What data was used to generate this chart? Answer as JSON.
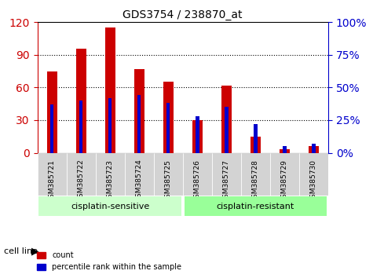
{
  "title": "GDS3754 / 238870_at",
  "categories": [
    "GSM385721",
    "GSM385722",
    "GSM385723",
    "GSM385724",
    "GSM385725",
    "GSM385726",
    "GSM385727",
    "GSM385728",
    "GSM385729",
    "GSM385730"
  ],
  "count_values": [
    75,
    96,
    115,
    77,
    65,
    30,
    62,
    15,
    3,
    6
  ],
  "percentile_values": [
    37,
    40,
    42,
    44,
    38,
    28,
    35,
    22,
    5,
    7
  ],
  "left_ylim": [
    0,
    120
  ],
  "right_ylim": [
    0,
    100
  ],
  "left_yticks": [
    0,
    30,
    60,
    90,
    120
  ],
  "right_yticks": [
    0,
    25,
    50,
    75,
    100
  ],
  "right_yticklabels": [
    "0%",
    "25%",
    "50%",
    "75%",
    "100%"
  ],
  "left_color": "#cc0000",
  "right_color": "#0000cc",
  "bar_color": "#cc0000",
  "blue_color": "#0000cc",
  "group1_label": "cisplatin-sensitive",
  "group2_label": "cisplatin-resistant",
  "group1_count": 5,
  "group2_count": 5,
  "cell_line_label": "cell line",
  "legend_count": "count",
  "legend_percentile": "percentile rank within the sample",
  "group1_color": "#ccffcc",
  "group2_color": "#99ff99",
  "xlabel_area_color": "#d3d3d3",
  "background_color": "#ffffff"
}
